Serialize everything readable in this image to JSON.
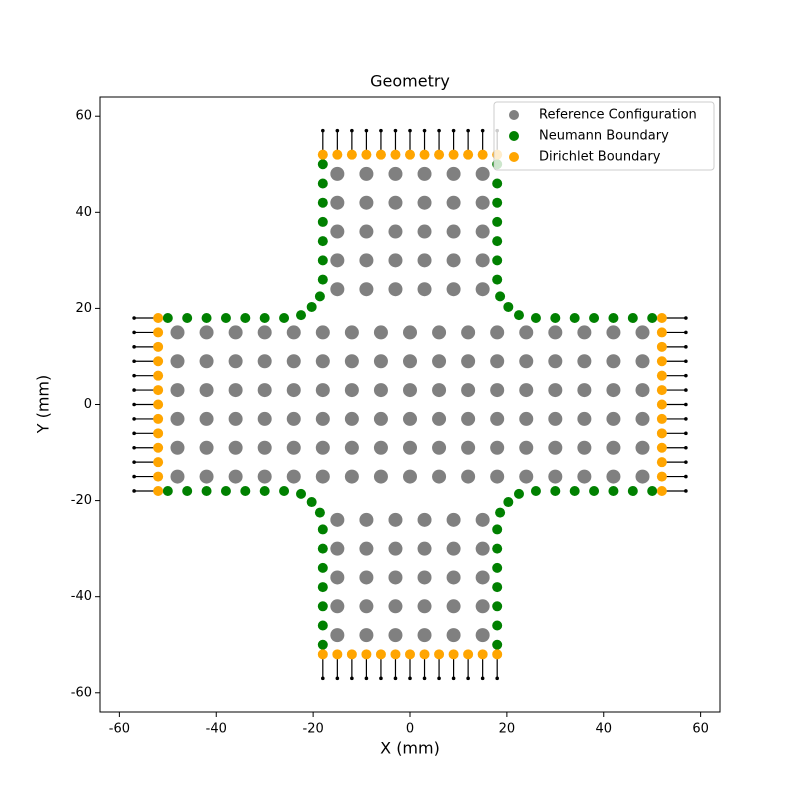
{
  "chart_data": {
    "type": "scatter",
    "title": "Geometry",
    "x_label": "X (mm)",
    "y_label": "Y (mm)",
    "xlim": [
      -64,
      64
    ],
    "ylim": [
      -64,
      64
    ],
    "xticks": [
      -60,
      -40,
      -20,
      0,
      20,
      40,
      60
    ],
    "yticks": [
      -60,
      -40,
      -20,
      0,
      20,
      40,
      60
    ],
    "legend": "upper right",
    "series": [
      {
        "name": "Reference Configuration",
        "color": "#808080",
        "size": 7,
        "x": [
          -48,
          -42,
          -36,
          -30,
          -24,
          -18,
          -12,
          -6,
          0,
          6,
          12,
          18,
          24,
          30,
          36,
          42,
          48,
          -48,
          -42,
          -36,
          -30,
          -24,
          -18,
          -12,
          -6,
          0,
          6,
          12,
          18,
          24,
          30,
          36,
          42,
          48,
          -48,
          -42,
          -36,
          -30,
          -24,
          -18,
          -12,
          -6,
          0,
          6,
          12,
          18,
          24,
          30,
          36,
          42,
          48,
          -48,
          -42,
          -36,
          -30,
          -24,
          -18,
          -12,
          -6,
          0,
          6,
          12,
          18,
          24,
          30,
          36,
          42,
          48,
          -48,
          -42,
          -36,
          -30,
          -24,
          -18,
          -12,
          -6,
          0,
          6,
          12,
          18,
          24,
          30,
          36,
          42,
          48,
          -48,
          -42,
          -36,
          -30,
          -24,
          -18,
          -12,
          -6,
          0,
          6,
          12,
          18,
          24,
          30,
          36,
          42,
          48,
          -15,
          -9,
          -3,
          3,
          9,
          15,
          -15,
          -9,
          -3,
          3,
          9,
          15,
          -15,
          -9,
          -3,
          3,
          9,
          15,
          -15,
          -9,
          -3,
          3,
          9,
          15,
          -15,
          -9,
          -3,
          3,
          9,
          15,
          -15,
          -9,
          -3,
          3,
          9,
          15,
          -15,
          -9,
          -3,
          3,
          9,
          15,
          -15,
          -9,
          -3,
          3,
          9,
          15,
          -15,
          -9,
          -3,
          3,
          9,
          15,
          -15,
          -9,
          -3,
          3,
          9,
          15
        ],
        "y": [
          -15,
          -15,
          -15,
          -15,
          -15,
          -15,
          -15,
          -15,
          -15,
          -15,
          -15,
          -15,
          -15,
          -15,
          -15,
          -15,
          -15,
          -9,
          -9,
          -9,
          -9,
          -9,
          -9,
          -9,
          -9,
          -9,
          -9,
          -9,
          -9,
          -9,
          -9,
          -9,
          -9,
          -9,
          -3,
          -3,
          -3,
          -3,
          -3,
          -3,
          -3,
          -3,
          -3,
          -3,
          -3,
          -3,
          -3,
          -3,
          -3,
          -3,
          -3,
          3,
          3,
          3,
          3,
          3,
          3,
          3,
          3,
          3,
          3,
          3,
          3,
          3,
          3,
          3,
          3,
          3,
          9,
          9,
          9,
          9,
          9,
          9,
          9,
          9,
          9,
          9,
          9,
          9,
          9,
          9,
          9,
          9,
          9,
          15,
          15,
          15,
          15,
          15,
          15,
          15,
          15,
          15,
          15,
          15,
          15,
          15,
          15,
          15,
          15,
          15,
          -48,
          -48,
          -48,
          -48,
          -48,
          -48,
          -42,
          -42,
          -42,
          -42,
          -42,
          -42,
          -36,
          -36,
          -36,
          -36,
          -36,
          -36,
          -30,
          -30,
          -30,
          -30,
          -30,
          -30,
          -24,
          -24,
          -24,
          -24,
          -24,
          -24,
          24,
          24,
          24,
          24,
          24,
          24,
          30,
          30,
          30,
          30,
          30,
          30,
          36,
          36,
          36,
          36,
          36,
          36,
          42,
          42,
          42,
          42,
          42,
          42,
          48,
          48,
          48,
          48,
          48,
          48
        ]
      },
      {
        "name": "Neumann Boundary",
        "color": "#008000",
        "size": 5,
        "x": [
          -18,
          -18,
          -18,
          -18,
          -18,
          -18,
          -18,
          -18.6,
          -20.3,
          -22.5,
          -26,
          -30,
          -34,
          -38,
          -42,
          -46,
          -50,
          18,
          18,
          18,
          18,
          18,
          18,
          18,
          18.6,
          20.3,
          22.5,
          26,
          30,
          34,
          38,
          42,
          46,
          50,
          -18,
          -18,
          -18,
          -18,
          -18,
          -18,
          -18,
          -18.6,
          -20.3,
          -22.5,
          -26,
          -30,
          -34,
          -38,
          -42,
          -46,
          -50,
          18,
          18,
          18,
          18,
          18,
          18,
          18,
          18.6,
          20.3,
          22.5,
          26,
          30,
          34,
          38,
          42,
          46,
          50
        ],
        "y": [
          50,
          46,
          42,
          38,
          34,
          30,
          26,
          22.5,
          20.3,
          18.6,
          18,
          18,
          18,
          18,
          18,
          18,
          18,
          50,
          46,
          42,
          38,
          34,
          30,
          26,
          22.5,
          20.3,
          18.6,
          18,
          18,
          18,
          18,
          18,
          18,
          18,
          -50,
          -46,
          -42,
          -38,
          -34,
          -30,
          -26,
          -22.5,
          -20.3,
          -18.6,
          -18,
          -18,
          -18,
          -18,
          -18,
          -18,
          -18,
          -50,
          -46,
          -42,
          -38,
          -34,
          -30,
          -26,
          -22.5,
          -20.3,
          -18.6,
          -18,
          -18,
          -18,
          -18,
          -18,
          -18,
          -18
        ]
      },
      {
        "name": "Dirichlet Boundary",
        "color": "#ffa500",
        "size": 5,
        "x": [
          -18,
          -15,
          -12,
          -9,
          -6,
          -3,
          0,
          3,
          6,
          9,
          12,
          15,
          18,
          -18,
          -15,
          -12,
          -9,
          -6,
          -3,
          0,
          3,
          6,
          9,
          12,
          15,
          18,
          -52,
          -52,
          -52,
          -52,
          -52,
          -52,
          -52,
          -52,
          -52,
          -52,
          -52,
          -52,
          -52,
          52,
          52,
          52,
          52,
          52,
          52,
          52,
          52,
          52,
          52,
          52,
          52,
          52
        ],
        "y": [
          52,
          52,
          52,
          52,
          52,
          52,
          52,
          52,
          52,
          52,
          52,
          52,
          52,
          -52,
          -52,
          -52,
          -52,
          -52,
          -52,
          -52,
          -52,
          -52,
          -52,
          -52,
          -52,
          -52,
          -18,
          -15,
          -12,
          -9,
          -6,
          -3,
          0,
          3,
          6,
          9,
          12,
          15,
          18,
          -18,
          -15,
          -12,
          -9,
          -6,
          -3,
          0,
          3,
          6,
          9,
          12,
          15,
          18
        ]
      }
    ]
  }
}
